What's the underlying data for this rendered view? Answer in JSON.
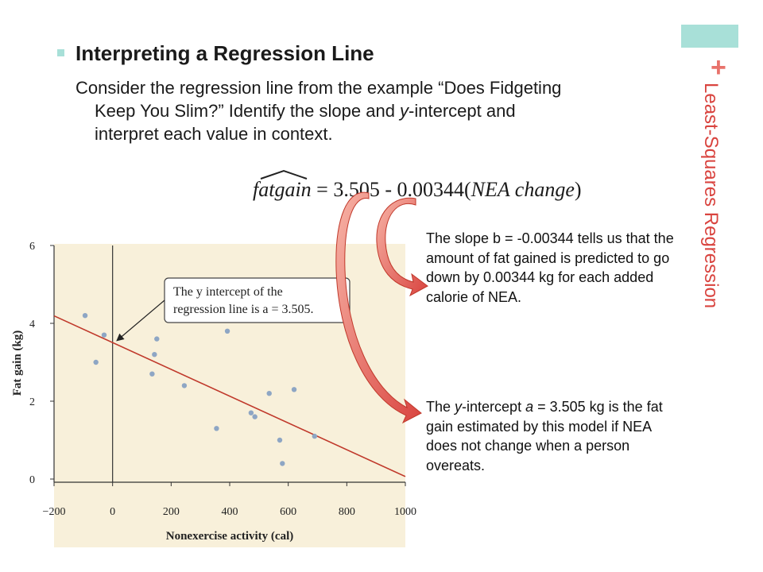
{
  "slide": {
    "side_title": "Least-Squares Regression",
    "plus_symbol": "+",
    "heading": "Interpreting a Regression Line",
    "body_line1": "Consider the regression line from the example “Does Fidgeting",
    "body_line2_a": "Keep You Slim?”  Identify the slope and ",
    "body_line2_italic": "y",
    "body_line2_b": "-intercept and",
    "body_line3": "interpret each value in context.",
    "equation": {
      "response": "fatgain",
      "equals": " = 3.505  -  0.00344(",
      "predictor": "NEA change",
      "close": ")"
    },
    "slope_note": "The slope b = -0.00344 tells us that the amount of fat gained is predicted to go down by 0.00344 kg for each added calorie of NEA.",
    "intercept_note_a": "The ",
    "intercept_note_y": "y",
    "intercept_note_b": "-intercept ",
    "intercept_note_a_var": "a",
    "intercept_note_c": " = 3.505 kg is the fat gain estimated by this model if NEA does not change when a person overeats.",
    "callout_line1": "The y intercept of the",
    "callout_line2": "regression line is a = 3.505."
  },
  "colors": {
    "accent_teal": "#a8e0d8",
    "accent_red": "#d9443f",
    "panel": "#f8f0da",
    "points": "#8ea6c4",
    "regression_line": "#c0392b"
  },
  "chart_data": {
    "type": "scatter",
    "xlabel": "Nonexercise activity (cal)",
    "ylabel": "Fat gain (kg)",
    "xlim": [
      -200,
      1000
    ],
    "ylim": [
      0,
      6
    ],
    "xticks": [
      "−200",
      "0",
      "200",
      "400",
      "600",
      "800",
      "1000"
    ],
    "yticks": [
      "0",
      "2",
      "4",
      "6"
    ],
    "xtick_values": [
      -200,
      0,
      200,
      400,
      600,
      800,
      1000
    ],
    "ytick_values": [
      0,
      2,
      4,
      6
    ],
    "points": [
      {
        "x": -94,
        "y": 4.2
      },
      {
        "x": -57,
        "y": 3.0
      },
      {
        "x": -29,
        "y": 3.7
      },
      {
        "x": 135,
        "y": 2.7
      },
      {
        "x": 143,
        "y": 3.2
      },
      {
        "x": 151,
        "y": 3.6
      },
      {
        "x": 245,
        "y": 2.4
      },
      {
        "x": 355,
        "y": 1.3
      },
      {
        "x": 392,
        "y": 3.8
      },
      {
        "x": 473,
        "y": 1.7
      },
      {
        "x": 486,
        "y": 1.6
      },
      {
        "x": 535,
        "y": 2.2
      },
      {
        "x": 571,
        "y": 1.0
      },
      {
        "x": 580,
        "y": 0.4
      },
      {
        "x": 620,
        "y": 2.3
      },
      {
        "x": 690,
        "y": 1.1
      }
    ],
    "regression": {
      "intercept": 3.505,
      "slope": -0.00344
    },
    "grid": false
  }
}
